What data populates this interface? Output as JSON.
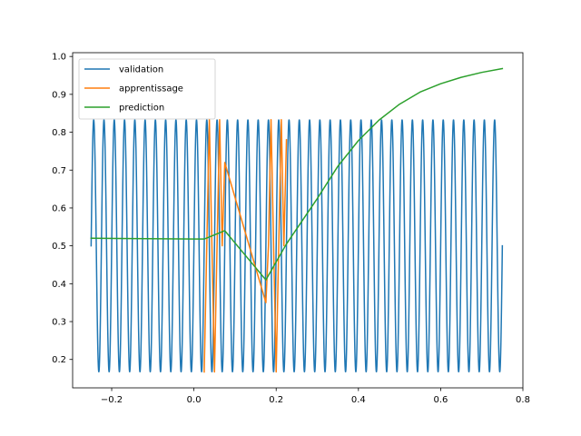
{
  "chart_data": {
    "type": "line",
    "title": "",
    "xlabel": "",
    "ylabel": "",
    "xlim": [
      -0.295,
      0.8
    ],
    "ylim": [
      0.125,
      1.01
    ],
    "xticks": [
      -0.2,
      0.0,
      0.2,
      0.4,
      0.6,
      0.8
    ],
    "xtick_labels": [
      "−0.2",
      "0.0",
      "0.2",
      "0.4",
      "0.6",
      "0.8"
    ],
    "yticks": [
      0.2,
      0.3,
      0.4,
      0.5,
      0.6,
      0.7,
      0.8,
      0.9,
      1.0
    ],
    "ytick_labels": [
      "0.2",
      "0.3",
      "0.4",
      "0.5",
      "0.6",
      "0.7",
      "0.8",
      "0.9",
      "1.0"
    ],
    "grid": false,
    "legend": {
      "position": "top-left",
      "entries": [
        "validation",
        "apprentissage",
        "prediction"
      ]
    },
    "series": [
      {
        "name": "validation",
        "color": "#1f77b4",
        "function": "0.5 + 0.333*sin(2*pi*x/0.025)",
        "x_range": [
          -0.25,
          0.75
        ],
        "samples": 2001
      },
      {
        "name": "apprentissage",
        "color": "#ff7f0e",
        "x": [
          0.025,
          0.03125,
          0.0375,
          0.04375,
          0.05,
          0.05625,
          0.0625,
          0.06875,
          0.075,
          0.175,
          0.18125,
          0.1875,
          0.19375,
          0.2,
          0.20625,
          0.2125,
          0.21875,
          0.225
        ],
        "y": [
          0.167,
          0.5,
          0.833,
          0.5,
          0.167,
          0.5,
          0.833,
          0.5,
          0.72,
          0.35,
          0.5,
          0.833,
          0.5,
          0.167,
          0.5,
          0.833,
          0.5,
          0.78
        ]
      },
      {
        "name": "prediction",
        "color": "#2ca02c",
        "x": [
          -0.25,
          0.0,
          0.025,
          0.075,
          0.175,
          0.225,
          0.3,
          0.35,
          0.4,
          0.45,
          0.5,
          0.55,
          0.6,
          0.65,
          0.7,
          0.75
        ],
        "y": [
          0.52,
          0.518,
          0.518,
          0.54,
          0.41,
          0.505,
          0.625,
          0.71,
          0.778,
          0.832,
          0.874,
          0.906,
          0.928,
          0.945,
          0.958,
          0.968
        ]
      }
    ]
  }
}
